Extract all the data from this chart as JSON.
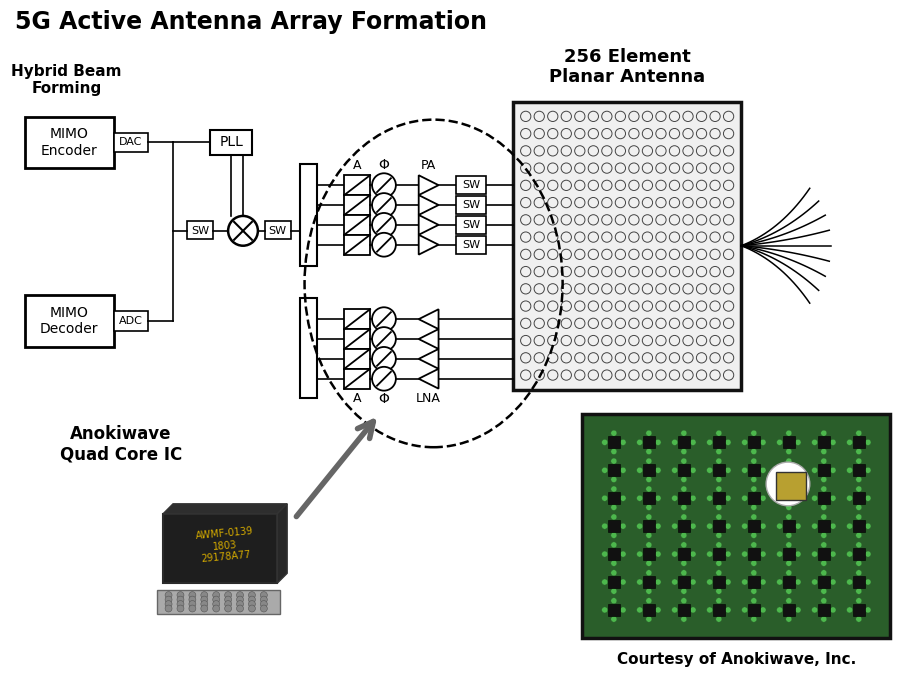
{
  "title": "5G Active Antenna Array Formation",
  "title_fontsize": 17,
  "bg_color": "#ffffff",
  "text_color": "#000000",
  "label_hybrid": "Hybrid Beam\nForming",
  "label_mimo_enc": "MIMO\nEncoder",
  "label_mimo_dec": "MIMO\nDecoder",
  "label_dac": "DAC",
  "label_adc": "ADC",
  "label_pll": "PLL",
  "label_sw": "SW",
  "label_256": "256 Element\nPlanar Antenna",
  "label_anoki": "Anokiwave\nQuad Core IC",
  "label_courtesy": "Courtesy of Anokiwave, Inc.",
  "label_A_top": "A",
  "label_phi_top": "Φ",
  "label_PA": "PA",
  "label_A_bot": "A",
  "label_phi_bot": "Φ",
  "label_LNA": "LNA",
  "chip_text": "AWMF-0139\n1803\n29178A77",
  "gray": "#555555",
  "dark_gray": "#333333",
  "green_pcb": "#2d6a2d",
  "mid_gray": "#999999"
}
